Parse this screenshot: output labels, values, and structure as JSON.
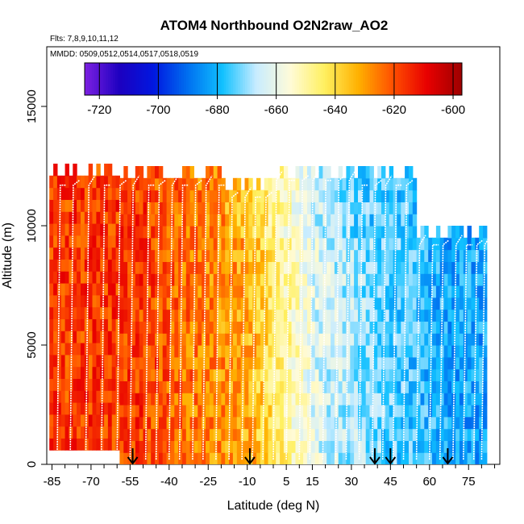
{
  "chart_data": {
    "type": "heatmap",
    "title": "ATOM4 Northbound O2N2raw_AO2",
    "flights_note": "Flts: 7,8,9,10,11,12",
    "dates_note": "MMDD: 0509,0512,0514,0517,0518,0519",
    "xlabel": "Latitude (deg N)",
    "ylabel": "Altitude (m)",
    "xlim": [
      -87,
      87
    ],
    "ylim": [
      0,
      17500
    ],
    "x_ticks": [
      -85,
      -70,
      -55,
      -40,
      -25,
      -10,
      5,
      15,
      30,
      45,
      60,
      75
    ],
    "y_ticks": [
      0,
      5000,
      10000,
      15000
    ],
    "colorbar": {
      "ticks": [
        -720,
        -700,
        -680,
        -660,
        -640,
        -620,
        -600
      ],
      "range": [
        -725,
        -597
      ],
      "stops": [
        "#7a1fe0",
        "#1c00c0",
        "#0018e0",
        "#0070f0",
        "#10c0ff",
        "#c8ecff",
        "#fffbd8",
        "#fff060",
        "#ffb000",
        "#ff5000",
        "#e80000",
        "#a00000"
      ]
    },
    "profile_markers_lat": [
      -54,
      -9,
      39,
      45,
      67
    ],
    "curtain_regions": [
      {
        "lat_from": -86,
        "lat_to": -20,
        "alt_top": 12000,
        "value": -617
      },
      {
        "lat_from": -20,
        "lat_to": 0,
        "alt_top": 11500,
        "value": -632
      },
      {
        "lat_from": 0,
        "lat_to": 30,
        "alt_top": 12200,
        "value": -662
      },
      {
        "lat_from": 30,
        "lat_to": 55,
        "alt_top": 12000,
        "value": -674
      },
      {
        "lat_from": 55,
        "lat_to": 82,
        "alt_top": 9500,
        "value": -682
      }
    ]
  }
}
